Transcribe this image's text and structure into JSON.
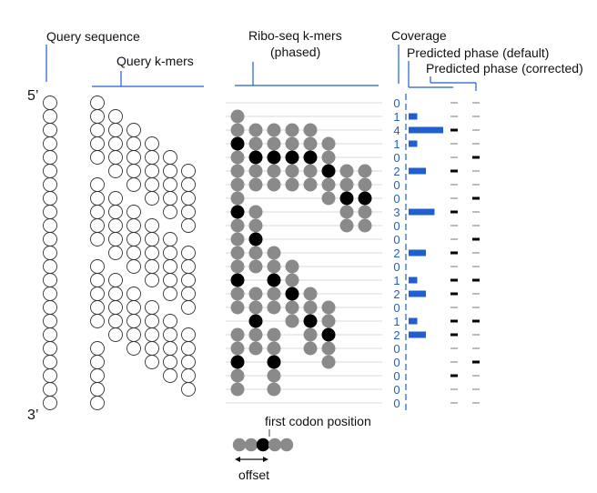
{
  "labels": {
    "query_sequence": "Query sequence",
    "query_kmers": "Query k-mers",
    "riboseq_kmers_line1": "Ribo-seq k-mers",
    "riboseq_kmers_line2": "(phased)",
    "coverage": "Coverage",
    "predicted_default": "Predicted phase (default)",
    "predicted_corrected": "Predicted phase (corrected)",
    "five_prime": "5’",
    "three_prime": "3’",
    "first_codon_position": "first codon position",
    "offset": "offset"
  },
  "colors": {
    "accent": "#1f5fd0",
    "query_circle_stroke": "#333333",
    "gray_dot": "#8a8a8a",
    "black_dot": "#000000",
    "rule": "#cccccc",
    "dash": "#555555"
  },
  "query_length": 23,
  "query_kmers": [
    {
      "start": 0,
      "len": 5
    },
    {
      "start": 1,
      "len": 5
    },
    {
      "start": 2,
      "len": 5
    },
    {
      "start": 3,
      "len": 5
    },
    {
      "start": 4,
      "len": 5
    },
    {
      "start": 5,
      "len": 5
    },
    {
      "start": 6,
      "len": 5
    },
    {
      "start": 7,
      "len": 5
    },
    {
      "start": 8,
      "len": 5
    },
    {
      "start": 9,
      "len": 5
    },
    {
      "start": 10,
      "len": 5
    },
    {
      "start": 11,
      "len": 5
    },
    {
      "start": 12,
      "len": 5
    },
    {
      "start": 13,
      "len": 5
    },
    {
      "start": 14,
      "len": 5
    },
    {
      "start": 15,
      "len": 5
    },
    {
      "start": 16,
      "len": 5
    },
    {
      "start": 17,
      "len": 5
    },
    {
      "start": 18,
      "len": 5
    }
  ],
  "riboseq_reads": [
    {
      "start": 1,
      "len": 5,
      "first_codon_offset": 2
    },
    {
      "start": 2,
      "len": 5,
      "first_codon_offset": 2
    },
    {
      "start": 2,
      "len": 5,
      "first_codon_offset": 2
    },
    {
      "start": 2,
      "len": 5,
      "first_codon_offset": 2
    },
    {
      "start": 2,
      "len": 5,
      "first_codon_offset": 2
    },
    {
      "start": 3,
      "len": 5,
      "first_codon_offset": 2
    },
    {
      "start": 5,
      "len": 5,
      "first_codon_offset": 2
    },
    {
      "start": 5,
      "len": 5,
      "first_codon_offset": 2
    },
    {
      "start": 6,
      "len": 5,
      "first_codon_offset": 2
    },
    {
      "start": 8,
      "len": 5,
      "first_codon_offset": 2
    },
    {
      "start": 11,
      "len": 5,
      "first_codon_offset": 2
    },
    {
      "start": 11,
      "len": 5,
      "first_codon_offset": 2
    },
    {
      "start": 12,
      "len": 5,
      "first_codon_offset": 2
    },
    {
      "start": 14,
      "len": 5,
      "first_codon_offset": 2
    },
    {
      "start": 14,
      "len": 5,
      "first_codon_offset": 2
    },
    {
      "start": 15,
      "len": 5,
      "first_codon_offset": 2
    },
    {
      "start": 17,
      "len": 5,
      "first_codon_offset": 2
    },
    {
      "start": 17,
      "len": 5,
      "first_codon_offset": 2
    }
  ],
  "coverage": [
    "0",
    "1",
    "4",
    "1",
    "0",
    "2",
    "0",
    "0",
    "3",
    "0",
    "0",
    "2",
    "0",
    "1",
    "2",
    "0",
    "1",
    "2",
    "0",
    "0",
    "0",
    "0",
    "0"
  ],
  "predicted_default": [
    false,
    false,
    true,
    false,
    false,
    true,
    false,
    false,
    true,
    false,
    false,
    true,
    false,
    true,
    true,
    false,
    true,
    true,
    false,
    false,
    true,
    false,
    false
  ],
  "predicted_corrected": [
    false,
    false,
    false,
    false,
    true,
    false,
    false,
    true,
    false,
    false,
    true,
    false,
    false,
    true,
    false,
    false,
    true,
    false,
    false,
    true,
    false,
    false,
    false
  ],
  "legend_example": {
    "len": 5,
    "first_codon_offset": 2
  }
}
